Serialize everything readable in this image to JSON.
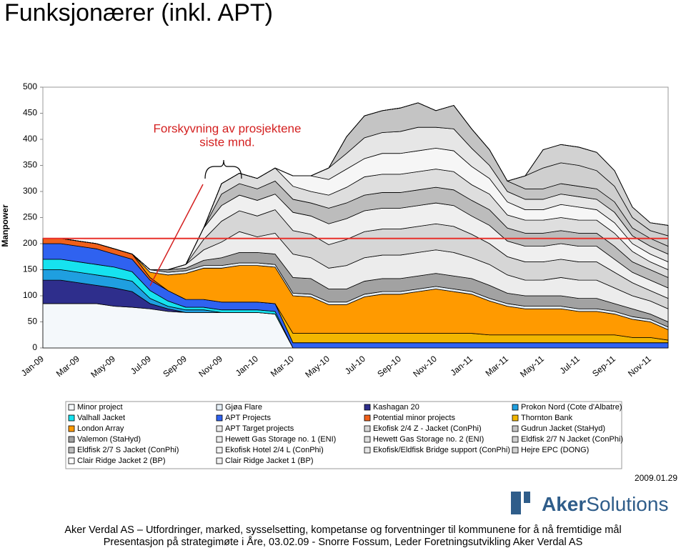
{
  "chart_data": {
    "type": "stacked-area",
    "title": "Funksjonærer (inkl. APT)",
    "y_label": "Manpower",
    "annotation": [
      "Forskyvning av prosjektene",
      "siste mnd."
    ],
    "reference_line": {
      "value": 210,
      "color": "#e8302a"
    },
    "categories": [
      "Jan-09",
      null,
      "Mar-09",
      null,
      "May-09",
      null,
      "Jul-09",
      null,
      "Sep-09",
      null,
      "Nov-09",
      null,
      "Jan-10",
      null,
      "Mar-10",
      null,
      "May-10",
      null,
      "Jul-10",
      null,
      "Sep-10",
      null,
      "Nov-10",
      null,
      "Jan-11",
      null,
      "Mar-11",
      null,
      "May-11",
      null,
      "Jul-11",
      null,
      "Sep-11",
      null,
      "Nov-11",
      null
    ],
    "ylim": [
      0,
      500
    ],
    "yticks": [
      0,
      50,
      100,
      150,
      200,
      250,
      300,
      350,
      400,
      450,
      500
    ],
    "series": [
      {
        "name": "Minor project",
        "color": "#f4f8fb",
        "values": [
          85,
          85,
          85,
          85,
          80,
          78,
          75,
          70,
          68,
          68,
          68,
          68,
          68,
          65,
          0,
          0,
          0,
          0,
          0,
          0,
          0,
          0,
          0,
          0,
          0,
          0,
          0,
          0,
          0,
          0,
          0,
          0,
          0,
          0,
          0,
          0
        ]
      },
      {
        "name": "Gjøa Flare",
        "color": "#e4eef6",
        "values": [
          0,
          0,
          0,
          0,
          0,
          0,
          5,
          5,
          5,
          5,
          5,
          5,
          5,
          5,
          5,
          5,
          5,
          5,
          5,
          5,
          5,
          5,
          5,
          5,
          5,
          5,
          5,
          5,
          5,
          5,
          5,
          5,
          5,
          5,
          5,
          5
        ]
      },
      {
        "name": "Kashagan 20",
        "color": "#2e2e8c",
        "values": [
          45,
          45,
          40,
          35,
          35,
          30,
          10,
          5,
          0,
          0,
          0,
          0,
          0,
          0,
          0,
          0,
          0,
          0,
          0,
          0,
          0,
          0,
          0,
          0,
          0,
          0,
          0,
          0,
          0,
          0,
          0,
          0,
          0,
          0,
          0,
          0
        ]
      },
      {
        "name": "Prokon Nord (Cote d'Albatre)",
        "color": "#1f9fe0",
        "values": [
          20,
          20,
          20,
          20,
          20,
          20,
          10,
          5,
          5,
          5,
          0,
          0,
          0,
          0,
          0,
          0,
          0,
          0,
          0,
          0,
          0,
          0,
          0,
          0,
          0,
          0,
          0,
          0,
          0,
          0,
          0,
          0,
          0,
          0,
          0,
          0
        ]
      },
      {
        "name": "Valhall Jacket",
        "color": "#16e2ef",
        "values": [
          20,
          20,
          20,
          20,
          20,
          18,
          15,
          10,
          5,
          5,
          5,
          5,
          5,
          5,
          0,
          0,
          0,
          0,
          0,
          0,
          0,
          0,
          0,
          0,
          0,
          0,
          0,
          0,
          0,
          0,
          0,
          0,
          0,
          0,
          0,
          0
        ]
      },
      {
        "name": "APT Projects",
        "color": "#2f62f0",
        "values": [
          30,
          30,
          30,
          30,
          25,
          24,
          20,
          20,
          15,
          15,
          15,
          15,
          15,
          15,
          10,
          10,
          10,
          10,
          10,
          10,
          10,
          10,
          10,
          10,
          10,
          10,
          10,
          10,
          10,
          10,
          10,
          10,
          10,
          10,
          10,
          10
        ]
      },
      {
        "name": "Potential minor projects",
        "color": "#f0601a",
        "values": [
          10,
          10,
          10,
          10,
          10,
          10,
          5,
          0,
          0,
          0,
          0,
          0,
          0,
          0,
          0,
          0,
          0,
          0,
          0,
          0,
          0,
          0,
          0,
          0,
          0,
          0,
          0,
          0,
          0,
          0,
          0,
          0,
          0,
          0,
          0,
          0
        ]
      },
      {
        "name": "Thornton Bank",
        "color": "#f2b600",
        "values": [
          0,
          0,
          0,
          0,
          0,
          0,
          0,
          0,
          0,
          0,
          0,
          0,
          0,
          0,
          18,
          18,
          18,
          18,
          18,
          18,
          18,
          18,
          18,
          18,
          18,
          15,
          15,
          15,
          15,
          15,
          15,
          15,
          15,
          10,
          10,
          5
        ]
      },
      {
        "name": "London Array",
        "color": "#ff9a00",
        "values": [
          0,
          0,
          0,
          0,
          0,
          0,
          10,
          30,
          50,
          60,
          65,
          70,
          70,
          70,
          72,
          70,
          55,
          55,
          70,
          75,
          75,
          80,
          85,
          80,
          75,
          65,
          55,
          50,
          50,
          50,
          45,
          45,
          40,
          35,
          30,
          20
        ]
      },
      {
        "name": "APT Target projects",
        "color": "#ececec",
        "values": [
          0,
          0,
          0,
          0,
          0,
          0,
          0,
          0,
          7,
          20,
          30,
          40,
          30,
          40,
          45,
          40,
          40,
          45,
          45,
          45,
          45,
          45,
          45,
          45,
          40,
          40,
          35,
          30,
          30,
          35,
          35,
          35,
          30,
          25,
          25,
          25
        ]
      },
      {
        "name": "Ekofisk 2/4 Z - Jacket (ConPhi)",
        "color": "#d6d6d6",
        "values": [
          0,
          0,
          0,
          0,
          0,
          0,
          0,
          0,
          0,
          20,
          40,
          40,
          40,
          45,
          45,
          45,
          45,
          50,
          50,
          50,
          50,
          50,
          50,
          50,
          45,
          40,
          35,
          35,
          35,
          35,
          35,
          35,
          30,
          25,
          20,
          20
        ]
      },
      {
        "name": "Gudrun Jacket (StaHyd)",
        "color": "#c4c4c4",
        "values": [
          0,
          0,
          0,
          0,
          0,
          0,
          0,
          0,
          0,
          0,
          0,
          0,
          0,
          0,
          0,
          0,
          0,
          32,
          42,
          42,
          45,
          47,
          32,
          45,
          37,
          30,
          20,
          20,
          20,
          20,
          20,
          20,
          20,
          15,
          15,
          15
        ]
      },
      {
        "name": "Valemon (StaHyd)",
        "color": "#a2a2a2",
        "values": [
          0,
          0,
          0,
          0,
          0,
          0,
          0,
          5,
          5,
          10,
          15,
          20,
          20,
          20,
          30,
          30,
          25,
          25,
          25,
          25,
          25,
          25,
          25,
          25,
          25,
          25,
          20,
          20,
          20,
          20,
          20,
          20,
          15,
          15,
          10,
          10
        ]
      },
      {
        "name": "Hewett Gas Storage no. 1 (ENI)",
        "color": "#efefef",
        "values": [
          0,
          0,
          0,
          0,
          0,
          0,
          0,
          0,
          0,
          22,
          30,
          30,
          30,
          30,
          35,
          35,
          40,
          40,
          40,
          40,
          40,
          40,
          40,
          40,
          35,
          35,
          30,
          30,
          30,
          30,
          30,
          30,
          25,
          20,
          20,
          20
        ]
      },
      {
        "name": "Hewett Gas Storage no. 2 (ENI)",
        "color": "#dedede",
        "values": [
          0,
          0,
          0,
          0,
          0,
          0,
          0,
          0,
          0,
          0,
          20,
          20,
          20,
          25,
          25,
          22,
          25,
          30,
          35,
          35,
          35,
          35,
          35,
          35,
          30,
          30,
          25,
          25,
          25,
          25,
          25,
          25,
          25,
          20,
          15,
          15
        ]
      },
      {
        "name": "Eldfisk 2/7 N Jacket (ConPhi)",
        "color": "#cfcfcf",
        "values": [
          0,
          0,
          0,
          0,
          0,
          0,
          0,
          0,
          0,
          0,
          0,
          0,
          0,
          0,
          0,
          0,
          0,
          0,
          0,
          0,
          0,
          0,
          0,
          0,
          0,
          0,
          0,
          25,
          40,
          40,
          40,
          35,
          30,
          20,
          15,
          20
        ]
      },
      {
        "name": "Eldfisk 2/7 S Jacket (ConPhi)",
        "color": "#bcbcbc",
        "values": [
          0,
          0,
          0,
          0,
          0,
          0,
          0,
          0,
          0,
          0,
          22,
          22,
          22,
          25,
          25,
          25,
          30,
          30,
          30,
          30,
          30,
          30,
          30,
          30,
          30,
          30,
          25,
          25,
          25,
          25,
          25,
          25,
          25,
          20,
          20,
          20
        ]
      },
      {
        "name": "Ekofisk Hotel 2/4 L (ConPhi)",
        "color": "#f6f6f6",
        "values": [
          0,
          0,
          0,
          0,
          0,
          0,
          0,
          0,
          0,
          0,
          0,
          0,
          0,
          0,
          20,
          30,
          30,
          35,
          35,
          40,
          40,
          40,
          40,
          40,
          35,
          30,
          25,
          20,
          20,
          25,
          25,
          20,
          20,
          15,
          15,
          15
        ]
      },
      {
        "name": "Ekofisk/Eldfisk Bridge support (ConPhi)",
        "color": "#e6e6e6",
        "values": [
          0,
          0,
          0,
          0,
          0,
          0,
          0,
          0,
          0,
          0,
          0,
          0,
          0,
          0,
          0,
          0,
          22,
          30,
          40,
          40,
          42,
          45,
          40,
          42,
          35,
          25,
          20,
          20,
          20,
          20,
          20,
          20,
          20,
          15,
          15,
          15
        ]
      },
      {
        "name": "Hejre EPC (DONG)",
        "color": "#d2d2d2",
        "values": [
          0,
          0,
          0,
          0,
          0,
          0,
          0,
          0,
          0,
          0,
          0,
          0,
          0,
          0,
          0,
          0,
          0,
          0,
          0,
          0,
          0,
          0,
          0,
          0,
          0,
          0,
          0,
          0,
          35,
          35,
          35,
          35,
          30,
          20,
          15,
          20
        ]
      },
      {
        "name": "Clair Ridge Jacket 2 (BP)",
        "color": "#ffffff",
        "values": [
          0,
          0,
          0,
          0,
          0,
          0,
          0,
          0,
          0,
          0,
          0,
          0,
          0,
          0,
          0,
          0,
          0,
          0,
          0,
          0,
          0,
          0,
          0,
          0,
          0,
          0,
          0,
          0,
          0,
          0,
          0,
          0,
          0,
          0,
          0,
          0
        ]
      },
      {
        "name": "Clair Ridge Jacket 1 (BP)",
        "color": "#f2f2f2",
        "values": [
          0,
          0,
          0,
          0,
          0,
          0,
          0,
          0,
          0,
          0,
          0,
          0,
          0,
          0,
          0,
          0,
          0,
          0,
          0,
          0,
          0,
          0,
          0,
          0,
          0,
          0,
          0,
          0,
          0,
          0,
          0,
          0,
          0,
          0,
          0,
          0
        ]
      }
    ]
  },
  "date": "2009.01.29",
  "logo": {
    "strong": "Aker",
    "light": "Solutions"
  },
  "footer": [
    "Aker Verdal AS – Utfordringer, marked, sysselsetting, kompetanse og forventninger til kommunene for å nå fremtidige mål",
    "Presentasjon på strategimøte i Åre, 03.02.09 - Snorre Fossum, Leder Foretningsutvikling Aker Verdal AS"
  ]
}
